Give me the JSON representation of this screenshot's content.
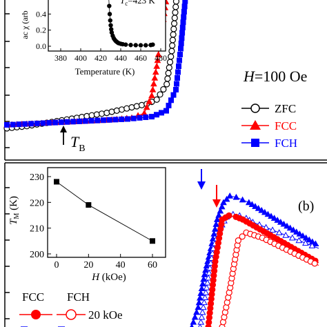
{
  "chart_data": [
    {
      "type": "line",
      "panel": "a",
      "annotation_field": "H=100 Oe",
      "marker_label": "T",
      "marker_label_sub": "B",
      "legend_placement": "right",
      "series": [
        {
          "name": "ZFC",
          "marker": "open-circle",
          "color": "#000000",
          "x": [
            0,
            0.08,
            0.16,
            0.24,
            0.32,
            0.4,
            0.48,
            0.56,
            0.6,
            0.64,
            0.66,
            0.68
          ],
          "y": [
            0,
            0.02,
            0.05,
            0.08,
            0.11,
            0.14,
            0.18,
            0.22,
            0.26,
            0.4,
            0.7,
            1.2
          ]
        },
        {
          "name": "FCC",
          "marker": "filled-triangle",
          "color": "#ff0000",
          "x": [
            0,
            0.1,
            0.2,
            0.3,
            0.4,
            0.5,
            0.55,
            0.58,
            0.6,
            0.62,
            0.64
          ],
          "y": [
            0.3,
            0.31,
            0.32,
            0.33,
            0.34,
            0.36,
            0.4,
            0.55,
            0.8,
            1.1,
            1.4
          ]
        },
        {
          "name": "FCH",
          "marker": "filled-square",
          "color": "#0000ff",
          "x": [
            0,
            0.1,
            0.2,
            0.3,
            0.4,
            0.5,
            0.6,
            0.66,
            0.7,
            0.72,
            0.74
          ],
          "y": [
            0.3,
            0.31,
            0.32,
            0.33,
            0.34,
            0.35,
            0.37,
            0.42,
            0.6,
            0.95,
            1.4
          ]
        }
      ],
      "inset": {
        "type": "scatter",
        "xlabel": "Temperature (K)",
        "ylabel": "ac χ (arb",
        "annotation": "T",
        "annotation_sub": "c",
        "annotation_value": "=423 K",
        "xlim": [
          380,
          480
        ],
        "ylim": [
          0,
          0.6
        ],
        "x_ticks": [
          "380",
          "400",
          "420",
          "440",
          "460",
          "480"
        ],
        "y_ticks": [
          "0.0",
          "0.2",
          "0.4"
        ],
        "x": [
          428,
          428.5,
          429,
          429.5,
          430,
          430.5,
          431,
          432,
          433,
          434,
          435,
          436,
          437,
          438,
          440,
          442,
          445,
          450,
          455,
          460,
          465,
          470,
          472
        ],
        "y": [
          0.6,
          0.5,
          0.4,
          0.32,
          0.26,
          0.21,
          0.17,
          0.13,
          0.1,
          0.08,
          0.065,
          0.055,
          0.045,
          0.038,
          0.03,
          0.025,
          0.02,
          0.015,
          0.013,
          0.012,
          0.012,
          0.015,
          0.02
        ]
      }
    },
    {
      "type": "line",
      "panel": "b",
      "panel_label": "(b)",
      "legend_headers": [
        "FCC",
        "FCH"
      ],
      "legend_entry_label": "20 kOe",
      "series": [
        {
          "name": "FCC",
          "marker": "filled-triangle",
          "color": "#0000ff",
          "x": [
            0,
            0.05,
            0.1,
            0.15,
            0.2,
            0.25,
            0.3,
            0.35,
            0.4,
            0.45,
            0.5,
            0.55,
            0.6,
            0.65,
            0.7,
            0.75,
            0.8,
            0.85,
            0.9,
            0.95,
            1.0
          ],
          "y": [
            0.0,
            0.15,
            0.4,
            0.6,
            0.82,
            0.95,
            1.0,
            0.99,
            0.97,
            0.95,
            0.92,
            0.89,
            0.86,
            0.83,
            0.8,
            0.77,
            0.74,
            0.71,
            0.68,
            0.65,
            0.62
          ]
        },
        {
          "name": "FCH",
          "marker": "open-triangle",
          "color": "#0000ff",
          "x": [
            0.1,
            0.15,
            0.2,
            0.25,
            0.3,
            0.35,
            0.4,
            0.45,
            0.5,
            0.55,
            0.6,
            0.65,
            0.7,
            0.75,
            0.8,
            0.85,
            0.9,
            0.95,
            1.0
          ],
          "y": [
            0.0,
            0.3,
            0.6,
            0.75,
            0.84,
            0.86,
            0.85,
            0.83,
            0.8,
            0.78,
            0.76,
            0.74,
            0.72,
            0.7,
            0.68,
            0.66,
            0.64,
            0.62,
            0.6
          ]
        },
        {
          "name": "FCC",
          "marker": "filled-circle",
          "color": "#ff0000",
          "x": [
            0.2,
            0.25,
            0.3,
            0.35,
            0.4,
            0.45,
            0.5,
            0.55,
            0.6,
            0.65,
            0.7,
            0.75,
            0.8,
            0.85,
            0.9,
            0.95,
            1.0
          ],
          "y": [
            0.0,
            0.5,
            0.82,
            0.85,
            0.84,
            0.82,
            0.79,
            0.76,
            0.73,
            0.7,
            0.67,
            0.64,
            0.61,
            0.58,
            0.55,
            0.52,
            0.49
          ]
        },
        {
          "name": "FCH",
          "marker": "open-circle",
          "color": "#ff0000",
          "x": [
            0.4,
            0.45,
            0.5,
            0.55,
            0.6,
            0.65,
            0.7,
            0.75,
            0.8,
            0.85,
            0.9,
            0.95,
            1.0
          ],
          "y": [
            0.0,
            0.3,
            0.66,
            0.72,
            0.7,
            0.68,
            0.65,
            0.62,
            0.59,
            0.56,
            0.53,
            0.5,
            0.47
          ]
        }
      ],
      "inset": {
        "type": "line",
        "xlabel": "H (kOe)",
        "ylabel": "T",
        "ylabel_sub": "M",
        "ylabel_unit": " (K)",
        "xlim": [
          -5,
          65
        ],
        "ylim": [
          198,
          232
        ],
        "x_ticks": [
          "0",
          "20",
          "40",
          "60"
        ],
        "y_ticks": [
          "200",
          "210",
          "220",
          "230"
        ],
        "x": [
          0,
          20,
          60
        ],
        "y": [
          228,
          219,
          205
        ]
      }
    }
  ]
}
